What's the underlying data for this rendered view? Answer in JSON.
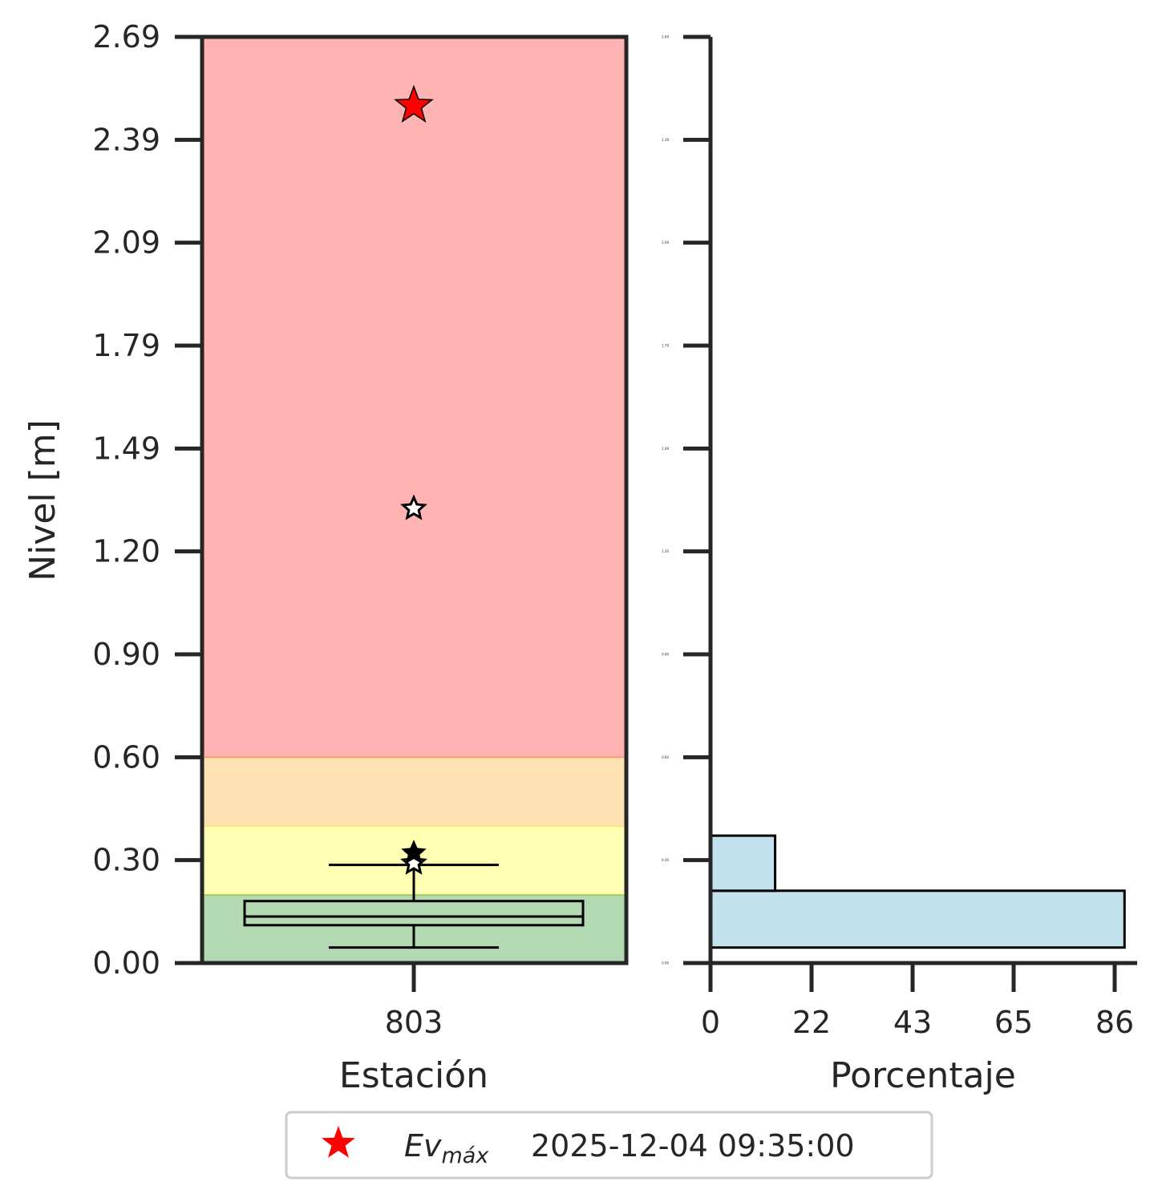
{
  "chart_data": [
    {
      "type": "box",
      "xlabel": "Estación",
      "ylabel": "Nivel [m]",
      "ylim": [
        0,
        2.69
      ],
      "yticks": [
        "0.00",
        "0.30",
        "0.60",
        "0.90",
        "1.20",
        "1.49",
        "1.79",
        "2.09",
        "2.39",
        "2.69"
      ],
      "categories": [
        "803"
      ],
      "bands": [
        {
          "from": 0.0,
          "to": 0.2,
          "color": "#b3d9b3",
          "line": "#9acd32"
        },
        {
          "from": 0.2,
          "to": 0.4,
          "color": "#ffffb3",
          "line": "#ffd966"
        },
        {
          "from": 0.4,
          "to": 0.6,
          "color": "#ffe2b3",
          "line": "#ff7f50"
        },
        {
          "from": 0.6,
          "to": 2.69,
          "color": "#ffb3b3",
          "line": null
        }
      ],
      "box": {
        "whisker_low": 0.045,
        "q1": 0.11,
        "median": 0.135,
        "q3": 0.18,
        "whisker_high": 0.285
      },
      "markers": [
        {
          "kind": "max-event",
          "value": 2.49,
          "color": "#ff0000"
        },
        {
          "kind": "hollow-star",
          "value": 1.32,
          "color": "#ffffff"
        },
        {
          "kind": "hollow-star",
          "value": 0.29,
          "color": "#ffffff"
        },
        {
          "kind": "black-star",
          "value": 0.32,
          "color": "#000000"
        }
      ],
      "grid": false
    },
    {
      "type": "bar",
      "orientation": "horizontal",
      "xlabel": "Porcentaje",
      "xticks": [
        "0",
        "22",
        "43",
        "65",
        "86"
      ],
      "xlim": [
        0,
        88.8
      ],
      "ylim": [
        0,
        2.69
      ],
      "ytick_labels": [
        "0.00",
        "0.30",
        "0.60",
        "0.90",
        "1.20",
        "1.49",
        "1.79",
        "2.09",
        "2.39",
        "2.69"
      ],
      "bins": [
        {
          "from": 0.045,
          "to": 0.21,
          "value": 86.5
        },
        {
          "from": 0.21,
          "to": 0.37,
          "value": 13.5
        }
      ],
      "bar_color": "#c2e1ec"
    }
  ],
  "legend": {
    "label": "Ev",
    "subscript": "máx",
    "date": "2025-12-04 09:35:00",
    "marker_color": "#ff0000",
    "placement": "bottom-center"
  }
}
